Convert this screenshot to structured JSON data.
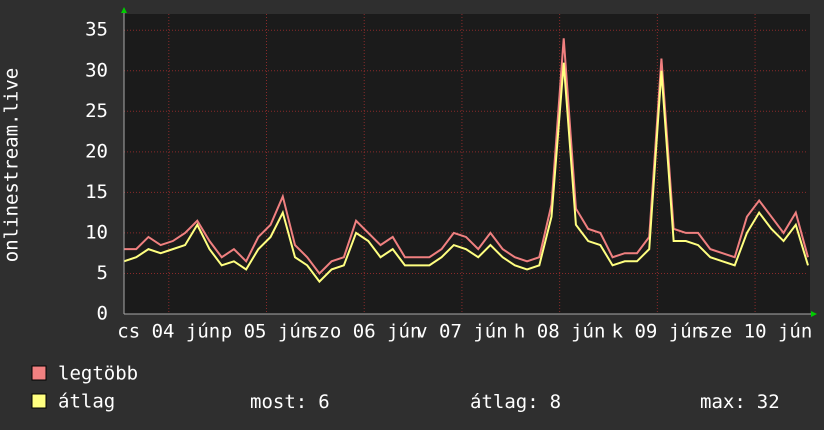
{
  "chart_data": {
    "type": "line",
    "y_label": "onlinestream.live",
    "x": [
      0,
      3,
      6,
      9,
      12,
      15,
      18,
      21,
      24,
      27,
      30,
      33,
      36,
      39,
      42,
      45,
      48,
      51,
      54,
      57,
      60,
      63,
      66,
      69,
      72,
      75,
      78,
      81,
      84,
      87,
      90,
      93,
      96,
      99,
      102,
      105,
      108,
      111,
      114,
      117,
      120,
      123,
      126,
      129,
      132,
      135,
      138,
      141,
      144,
      147,
      150,
      153,
      156,
      159,
      162,
      165,
      168
    ],
    "xlim": [
      0,
      168
    ],
    "xticks": [
      {
        "value": 11,
        "label": "cs 04 jún"
      },
      {
        "value": 35,
        "label": "p 05 jún"
      },
      {
        "value": 59,
        "label": "szo 06 jún"
      },
      {
        "value": 83,
        "label": "v 07 jún"
      },
      {
        "value": 107,
        "label": "h 08 jún"
      },
      {
        "value": 131,
        "label": "k 09 jún"
      },
      {
        "value": 155,
        "label": "sze 10 jún"
      }
    ],
    "ylim": [
      0,
      37
    ],
    "yticks": [
      0,
      5,
      10,
      15,
      20,
      25,
      30,
      35
    ],
    "grid": true,
    "series": [
      {
        "name": "legtöbb",
        "color": "#f08080",
        "values": [
          8,
          8,
          9.5,
          8.5,
          9,
          10,
          11.5,
          9,
          7,
          8,
          6.5,
          9.5,
          11,
          14.5,
          8.5,
          7,
          5,
          6.5,
          7,
          11.5,
          10,
          8.5,
          9.5,
          7,
          7,
          7,
          8,
          10,
          9.5,
          8,
          10,
          8,
          7,
          6.5,
          7,
          13.5,
          34,
          13,
          10.5,
          10,
          7,
          7.5,
          7.5,
          9.5,
          31.5,
          10.5,
          10,
          10,
          8,
          7.5,
          7,
          12,
          14,
          12,
          10,
          12.5,
          7
        ]
      },
      {
        "name": "átlag",
        "color": "#ffff80",
        "values": [
          6.5,
          7,
          8,
          7.5,
          8,
          8.5,
          11,
          8,
          6,
          6.5,
          5.5,
          8,
          9.5,
          12.5,
          7,
          6,
          4,
          5.5,
          6,
          10,
          9,
          7,
          8,
          6,
          6,
          6,
          7,
          8.5,
          8,
          7,
          8.5,
          7,
          6,
          5.5,
          6,
          12,
          31,
          11,
          9,
          8.5,
          6,
          6.5,
          6.5,
          8,
          30,
          9,
          9,
          8.5,
          7,
          6.5,
          6,
          10,
          12.5,
          10.5,
          9,
          11,
          6
        ]
      }
    ],
    "stats": [
      {
        "label": "most:",
        "value": 6
      },
      {
        "label": "átlag:",
        "value": 8
      },
      {
        "label": "max:",
        "value": 32
      }
    ]
  }
}
